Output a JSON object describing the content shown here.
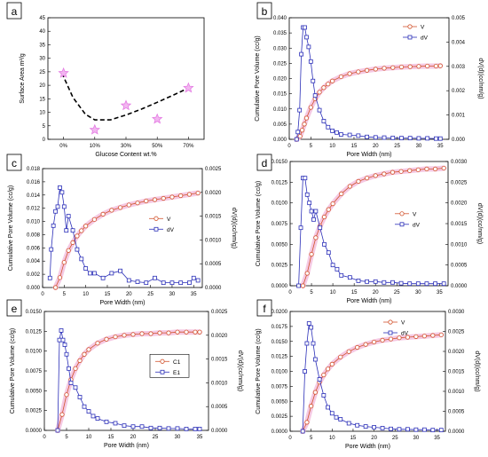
{
  "chart_data": [
    {
      "panel": "a",
      "type": "scatter",
      "xlabel": "Glucose Content wt.%",
      "ylabel": "Surface Area m²/g",
      "categories": [
        "0%",
        "10%",
        "30%",
        "50%",
        "70%"
      ],
      "xlim": [
        -0.5,
        4.5
      ],
      "ylim": [
        0,
        45
      ],
      "yticks": [
        0,
        5,
        10,
        15,
        20,
        25,
        30,
        35,
        40,
        45
      ],
      "marker": "star",
      "marker_color": "#e47be3",
      "points": [
        {
          "x": "0%",
          "y": 24.5
        },
        {
          "x": "10%",
          "y": 3.5
        },
        {
          "x": "30%",
          "y": 12.5
        },
        {
          "x": "50%",
          "y": 7.5
        },
        {
          "x": "70%",
          "y": 19
        }
      ],
      "fit": {
        "style": "dashed",
        "color": "#000000",
        "x": [
          -0.05,
          0.3,
          0.7,
          1.0,
          1.5,
          2.0,
          2.5,
          3.0,
          3.5,
          4.0
        ],
        "y": [
          24.5,
          15.5,
          9.3,
          7.2,
          7.2,
          9.0,
          11.2,
          13.7,
          16.3,
          19.0
        ]
      }
    },
    {
      "panel": "b",
      "type": "line",
      "xlabel": "Pore Width (nm)",
      "ylabel": "Cumulative Pore Volume (cc/g)",
      "y2label": "dV(d)(cc/nm/g)",
      "xlim": [
        0,
        37
      ],
      "xticks": [
        0,
        5,
        10,
        15,
        20,
        25,
        30,
        35
      ],
      "ylim": [
        0,
        0.04
      ],
      "yticks": [
        "0.000",
        "0.005",
        "0.010",
        "0.015",
        "0.020",
        "0.025",
        "0.030",
        "0.035",
        "0.040"
      ],
      "y2lim": [
        0,
        0.005
      ],
      "y2ticks": [
        "0.000",
        "0.001",
        "0.002",
        "0.003",
        "0.004",
        "0.005"
      ],
      "legend": {
        "position": "top-right",
        "entries": [
          "V",
          "dV"
        ]
      },
      "series": [
        {
          "name": "V",
          "marker": "circle",
          "color": "#d2542e",
          "axis": "left",
          "x": [
            1.7,
            2.5,
            3,
            3.5,
            4,
            5,
            6,
            7,
            8,
            9,
            10,
            12,
            14,
            16,
            18,
            20,
            22,
            24,
            26,
            28,
            30,
            32,
            34,
            35
          ],
          "y": [
            0,
            0.001,
            0.003,
            0.005,
            0.007,
            0.0105,
            0.0133,
            0.0155,
            0.017,
            0.0182,
            0.0192,
            0.0206,
            0.0216,
            0.0222,
            0.0227,
            0.0231,
            0.0234,
            0.0236,
            0.0238,
            0.0239,
            0.024,
            0.0241,
            0.0241,
            0.0242
          ]
        },
        {
          "name": "dV",
          "marker": "square",
          "color": "#2b2fb8",
          "axis": "right",
          "x": [
            1.7,
            2,
            2.4,
            2.8,
            3.2,
            3.6,
            4,
            4.5,
            5,
            5.5,
            6,
            7,
            8,
            9,
            10,
            11,
            12,
            14,
            16,
            18,
            20,
            22,
            24,
            26,
            28,
            30,
            32,
            34,
            35
          ],
          "y": [
            0,
            0.0003,
            0.0012,
            0.0035,
            0.0046,
            0.0046,
            0.0042,
            0.0038,
            0.0032,
            0.0024,
            0.0018,
            0.0012,
            0.00075,
            0.0005,
            0.00035,
            0.00028,
            0.0002,
            0.00018,
            0.00015,
            0.0001,
            8e-05,
            7e-05,
            6e-05,
            5e-05,
            5e-05,
            4e-05,
            4e-05,
            3e-05,
            3e-05
          ]
        }
      ]
    },
    {
      "panel": "c",
      "type": "line",
      "xlabel": "Pore Width (nm)",
      "ylabel": "Cumulative Pore Volume (cc/g)",
      "y2label": "dV(d)(cc/nm/g)",
      "xlim": [
        0,
        37
      ],
      "xticks": [
        0,
        5,
        10,
        15,
        20,
        25,
        30,
        35
      ],
      "ylim": [
        0,
        0.018
      ],
      "yticks": [
        "0.000",
        "0.002",
        "0.004",
        "0.006",
        "0.008",
        "0.010",
        "0.012",
        "0.014",
        "0.016",
        "0.018"
      ],
      "y2lim": [
        0,
        0.0025
      ],
      "y2ticks": [
        "0.0000",
        "0.0005",
        "0.0010",
        "0.0015",
        "0.0020",
        "0.0025"
      ],
      "legend": {
        "position": "center-right",
        "entries": [
          "V",
          "dV"
        ]
      },
      "series": [
        {
          "name": "V",
          "marker": "circle",
          "color": "#d2542e",
          "axis": "left",
          "x": [
            3,
            4,
            5,
            6,
            7,
            8,
            9,
            10,
            12,
            14,
            16,
            18,
            20,
            22,
            24,
            26,
            28,
            30,
            32,
            34,
            36
          ],
          "y": [
            0,
            0.0015,
            0.0038,
            0.0056,
            0.0068,
            0.0078,
            0.0086,
            0.0093,
            0.0103,
            0.0111,
            0.0117,
            0.0121,
            0.0125,
            0.0128,
            0.0131,
            0.0133,
            0.0135,
            0.0137,
            0.0139,
            0.0141,
            0.0143
          ]
        },
        {
          "name": "dV",
          "marker": "square",
          "color": "#2b2fb8",
          "axis": "right",
          "x": [
            1.7,
            2,
            2.5,
            3,
            3.5,
            4,
            4.5,
            5,
            5.5,
            6,
            7,
            8,
            9,
            10,
            11,
            12,
            14,
            16,
            18,
            20,
            22,
            24,
            26,
            28,
            30,
            32,
            34,
            35,
            36
          ],
          "y": [
            0.0002,
            0.0008,
            0.0013,
            0.0016,
            0.0017,
            0.0021,
            0.002,
            0.0017,
            0.0012,
            0.0015,
            0.0012,
            0.0008,
            0.0006,
            0.0004,
            0.0003,
            0.0003,
            0.0002,
            0.0003,
            0.00035,
            0.00015,
            0.00012,
            0.0001,
            0.0002,
            0.0001,
            0.0001,
            0.0001,
            0.0001,
            0.0002,
            0.00015
          ]
        }
      ]
    },
    {
      "panel": "d",
      "type": "line",
      "xlabel": "Pore Width (nm)",
      "ylabel": "Cumulative Pore Volume (cc/g)",
      "y2label": "dV(d)(cc/nm/g)",
      "xlim": [
        0,
        37
      ],
      "xticks": [
        0,
        5,
        10,
        15,
        20,
        25,
        30,
        35
      ],
      "ylim": [
        0,
        0.015
      ],
      "yticks": [
        "0.0000",
        "0.0025",
        "0.0050",
        "0.0075",
        "0.0100",
        "0.0125",
        "0.0150"
      ],
      "y2lim": [
        0,
        0.003
      ],
      "y2ticks": [
        "0.0000",
        "0.0005",
        "0.0010",
        "0.0015",
        "0.0020",
        "0.0025",
        "0.0030"
      ],
      "legend": {
        "position": "center-right",
        "entries": [
          "V",
          "dV"
        ]
      },
      "series": [
        {
          "name": "V",
          "marker": "circle",
          "color": "#d2542e",
          "axis": "left",
          "x": [
            3,
            4,
            5,
            6,
            7,
            8,
            9,
            10,
            12,
            14,
            16,
            18,
            20,
            22,
            24,
            26,
            28,
            30,
            32,
            34,
            36
          ],
          "y": [
            0,
            0.0015,
            0.0038,
            0.0058,
            0.0072,
            0.0083,
            0.0092,
            0.0099,
            0.0111,
            0.012,
            0.0126,
            0.013,
            0.0133,
            0.0135,
            0.0137,
            0.0138,
            0.0139,
            0.014,
            0.0141,
            0.0141,
            0.0142
          ]
        },
        {
          "name": "dV",
          "marker": "square",
          "color": "#2b2fb8",
          "axis": "right",
          "x": [
            2,
            2.5,
            3,
            3.5,
            4,
            4.5,
            5,
            5.5,
            6,
            7,
            8,
            9,
            10,
            11,
            12,
            14,
            16,
            18,
            20,
            22,
            24,
            26,
            28,
            30,
            32,
            34,
            36
          ],
          "y": [
            0,
            0.0014,
            0.0026,
            0.0026,
            0.0022,
            0.002,
            0.0018,
            0.0016,
            0.0018,
            0.0014,
            0.001,
            0.0008,
            0.0005,
            0.0004,
            0.00025,
            0.0002,
            0.00012,
            0.0001,
            0.0001,
            8e-05,
            8e-05,
            6e-05,
            5e-05,
            5e-05,
            5e-05,
            5e-05,
            5e-05
          ]
        }
      ]
    },
    {
      "panel": "e",
      "type": "line",
      "xlabel": "Pore Width (nm)",
      "ylabel": "Cumulative Pore Volume (cc/g)",
      "y2label": "dV(d)(cc/nm/g)",
      "xlim": [
        0,
        37
      ],
      "xticks": [
        0,
        5,
        10,
        15,
        20,
        25,
        30,
        35
      ],
      "ylim": [
        0,
        0.015
      ],
      "yticks": [
        "0.0000",
        "0.0025",
        "0.0050",
        "0.0075",
        "0.0100",
        "0.0125",
        "0.0150"
      ],
      "y2lim": [
        0,
        0.0025
      ],
      "y2ticks": [
        "0.0000",
        "0.0005",
        "0.0010",
        "0.0015",
        "0.0020",
        "0.0025"
      ],
      "legend": {
        "position": "center-right",
        "entries": [
          "C1",
          "E1"
        ]
      },
      "series": [
        {
          "name": "C1",
          "marker": "circle",
          "color": "#d2542e",
          "axis": "left",
          "x": [
            3,
            4,
            5,
            6,
            7,
            8,
            9,
            10,
            12,
            14,
            16,
            18,
            20,
            22,
            24,
            26,
            28,
            30,
            32,
            34,
            35
          ],
          "y": [
            0,
            0.002,
            0.0045,
            0.0064,
            0.0078,
            0.0088,
            0.0096,
            0.0102,
            0.011,
            0.0115,
            0.0118,
            0.012,
            0.0121,
            0.0122,
            0.0122,
            0.0123,
            0.0123,
            0.0124,
            0.0124,
            0.0124,
            0.0124
          ]
        },
        {
          "name": "E1",
          "marker": "square",
          "color": "#2b2fb8",
          "axis": "right",
          "x": [
            3,
            3.4,
            3.8,
            4.2,
            4.6,
            5,
            5.5,
            6,
            7,
            8,
            9,
            10,
            11,
            12,
            14,
            16,
            18,
            20,
            22,
            24,
            26,
            28,
            30,
            32,
            34,
            35
          ],
          "y": [
            0,
            0.0019,
            0.0021,
            0.0019,
            0.0018,
            0.0016,
            0.0013,
            0.001,
            0.0009,
            0.0007,
            0.0005,
            0.0004,
            0.0003,
            0.00025,
            0.00018,
            0.00015,
            0.0001,
            8e-05,
            8e-05,
            5e-05,
            5e-05,
            4e-05,
            4e-05,
            3e-05,
            3e-05,
            3e-05
          ]
        }
      ]
    },
    {
      "panel": "f",
      "type": "line",
      "xlabel": "Pore Width (nm)",
      "ylabel": "Cumulative Pore Volume (cc/g)",
      "y2label": "dV(d)(cc/nm/g)",
      "xlim": [
        0,
        37
      ],
      "xticks": [
        0,
        5,
        10,
        15,
        20,
        25,
        30,
        35
      ],
      "ylim": [
        0,
        0.02
      ],
      "yticks": [
        "0.0000",
        "0.0025",
        "0.0050",
        "0.0075",
        "0.0100",
        "0.0125",
        "0.0150",
        "0.0175",
        "0.0200"
      ],
      "y2lim": [
        0,
        0.003
      ],
      "y2ticks": [
        "0.0000",
        "0.0005",
        "0.0010",
        "0.0015",
        "0.0020",
        "0.0025",
        "0.0030"
      ],
      "legend": {
        "position": "top-left",
        "entries": [
          "V",
          "dV"
        ]
      },
      "series": [
        {
          "name": "V",
          "marker": "circle",
          "color": "#d2542e",
          "axis": "left",
          "x": [
            3,
            4,
            5,
            6,
            7,
            8,
            9,
            10,
            12,
            14,
            16,
            18,
            20,
            22,
            24,
            26,
            28,
            30,
            32,
            34,
            36
          ],
          "y": [
            0,
            0.0015,
            0.0042,
            0.0065,
            0.0082,
            0.0094,
            0.0104,
            0.0112,
            0.0124,
            0.0133,
            0.014,
            0.0145,
            0.0149,
            0.0152,
            0.0154,
            0.0156,
            0.0157,
            0.0158,
            0.0159,
            0.016,
            0.0161
          ]
        },
        {
          "name": "dV",
          "marker": "square",
          "color": "#2b2fb8",
          "axis": "right",
          "x": [
            3,
            3.5,
            4,
            4.5,
            5,
            5.5,
            6,
            7,
            8,
            9,
            10,
            11,
            12,
            14,
            16,
            18,
            20,
            22,
            24,
            26,
            28,
            30,
            32,
            34,
            36
          ],
          "y": [
            0,
            0.0015,
            0.0022,
            0.0027,
            0.0026,
            0.0022,
            0.0018,
            0.0013,
            0.0009,
            0.0006,
            0.00045,
            0.00035,
            0.0003,
            0.0002,
            0.00015,
            0.00012,
            0.0001,
            8e-05,
            6e-05,
            5e-05,
            5e-05,
            4e-05,
            4e-05,
            3e-05,
            3e-05
          ]
        }
      ]
    }
  ]
}
